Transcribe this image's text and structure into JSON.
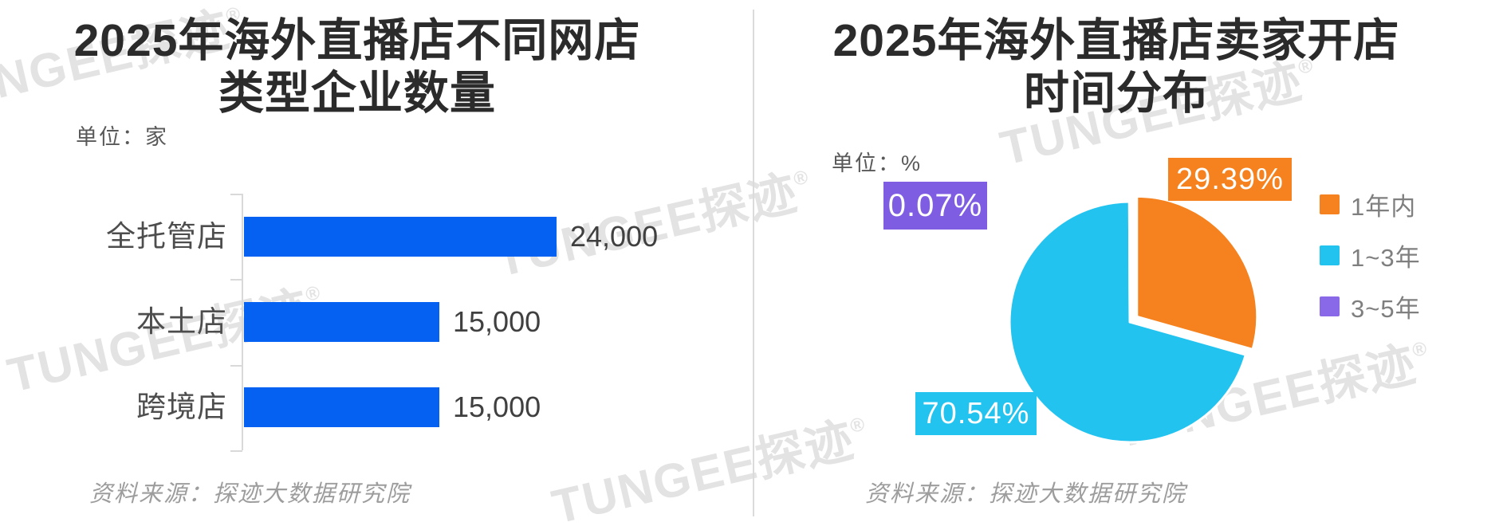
{
  "watermark": {
    "text": "TUNGEE探迹",
    "reg": "®"
  },
  "divider_color": "#dbdbdb",
  "colors": {
    "title_text": "#2b2b2b",
    "secondary_text": "#595959",
    "legend_text": "#7f7f7f",
    "source_text": "#9d9d9d",
    "axis_gray": "#d9d9d9",
    "watermark_gray": "#e3e3e3"
  },
  "chart_data": [
    {
      "type": "bar",
      "orientation": "horizontal",
      "title": "2025年海外直播店不同网店类型企业数量",
      "title_lines": [
        "2025年海外直播店不同网店",
        "类型企业数量"
      ],
      "unit_label": "单位：家",
      "unit": "家",
      "categories": [
        "全托管店",
        "本土店",
        "跨境店"
      ],
      "values": [
        24000,
        15000,
        15000
      ],
      "value_labels": [
        "24,000",
        "15,000",
        "15,000"
      ],
      "xlim": [
        0,
        24000
      ],
      "bar_color": "#0561F2",
      "grid": false,
      "source": "资料来源：探迹大数据研究院"
    },
    {
      "type": "pie",
      "title": "2025年海外直播店卖家开店时间分布",
      "title_lines": [
        "2025年海外直播店卖家开店",
        "时间分布"
      ],
      "unit_label": "单位：%",
      "unit": "%",
      "start_angle": "north",
      "direction": "clockwise",
      "legend_position": "right",
      "slices": [
        {
          "label": "1年内",
          "value": 29.39,
          "display": "29.39%",
          "color": "#F5821E",
          "callout_color": "#F5821E",
          "exploded": true
        },
        {
          "label": "1~3年",
          "value": 70.54,
          "display": "70.54%",
          "color": "#23C3F0",
          "callout_color": "#23C3F0",
          "exploded": false
        },
        {
          "label": "3~5年",
          "value": 0.07,
          "display": "0.07%",
          "color": "#8A69E9",
          "callout_color": "#7E5DE3",
          "exploded": false
        }
      ],
      "source": "资料来源：探迹大数据研究院"
    }
  ]
}
